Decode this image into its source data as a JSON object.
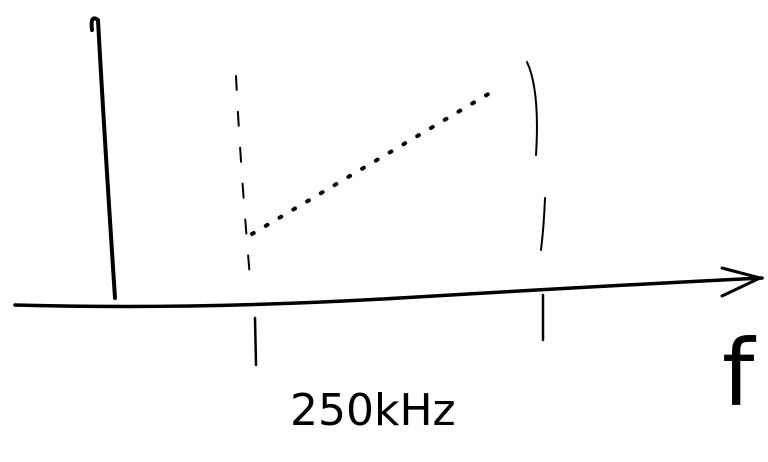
{
  "labels": {
    "frequency": "250kHz",
    "axis": "f"
  }
}
